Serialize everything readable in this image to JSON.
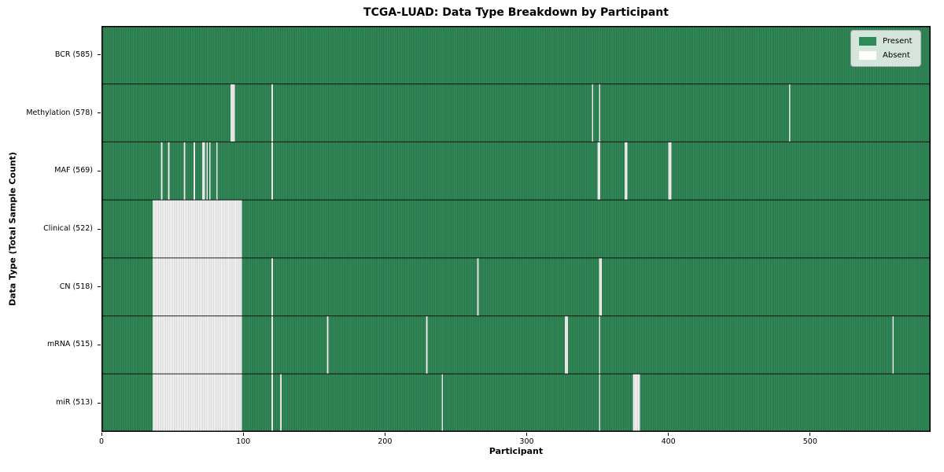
{
  "chart_data": {
    "type": "heatmap",
    "title": "TCGA-LUAD: Data Type Breakdown by Participant",
    "xlabel": "Participant",
    "ylabel": "Data Type (Total Sample Count)",
    "x_ticks": [
      0,
      100,
      200,
      300,
      400,
      500
    ],
    "x_range": [
      0,
      585
    ],
    "total_participants": 585,
    "grid": false,
    "colors": {
      "present": "#2e8b57",
      "absent": "#ffffff"
    },
    "legend": {
      "position": "upper right",
      "entries": [
        {
          "label": "Present",
          "color": "#2e8b57"
        },
        {
          "label": "Absent",
          "color": "#ffffff"
        }
      ]
    },
    "rows": [
      {
        "label": "BCR (585)",
        "data_type": "BCR",
        "present_count": 585,
        "absent_ranges": []
      },
      {
        "label": "Methylation (578)",
        "data_type": "Methylation",
        "present_count": 578,
        "absent_ranges": [
          [
            91,
            93
          ],
          [
            120,
            120
          ],
          [
            346,
            346
          ],
          [
            351,
            351
          ],
          [
            485,
            485
          ]
        ]
      },
      {
        "label": "MAF (569)",
        "data_type": "MAF",
        "present_count": 569,
        "absent_ranges": [
          [
            42,
            42
          ],
          [
            47,
            47
          ],
          [
            58,
            58
          ],
          [
            65,
            65
          ],
          [
            71,
            72
          ],
          [
            74,
            74
          ],
          [
            76,
            76
          ],
          [
            81,
            81
          ],
          [
            120,
            120
          ],
          [
            350,
            351
          ],
          [
            369,
            370
          ],
          [
            400,
            401
          ]
        ]
      },
      {
        "label": "Clinical (522)",
        "data_type": "Clinical",
        "present_count": 522,
        "absent_ranges": [
          [
            36,
            98
          ]
        ]
      },
      {
        "label": "CN (518)",
        "data_type": "CN",
        "present_count": 518,
        "absent_ranges": [
          [
            36,
            98
          ],
          [
            120,
            120
          ],
          [
            265,
            265
          ],
          [
            351,
            352
          ]
        ]
      },
      {
        "label": "mRNA (515)",
        "data_type": "mRNA",
        "present_count": 515,
        "absent_ranges": [
          [
            36,
            98
          ],
          [
            120,
            120
          ],
          [
            159,
            159
          ],
          [
            229,
            229
          ],
          [
            327,
            328
          ],
          [
            351,
            351
          ],
          [
            558,
            558
          ]
        ]
      },
      {
        "label": "miR (513)",
        "data_type": "miR",
        "present_count": 513,
        "absent_ranges": [
          [
            36,
            98
          ],
          [
            120,
            120
          ],
          [
            126,
            126
          ],
          [
            240,
            240
          ],
          [
            351,
            351
          ],
          [
            375,
            379
          ]
        ]
      }
    ]
  }
}
